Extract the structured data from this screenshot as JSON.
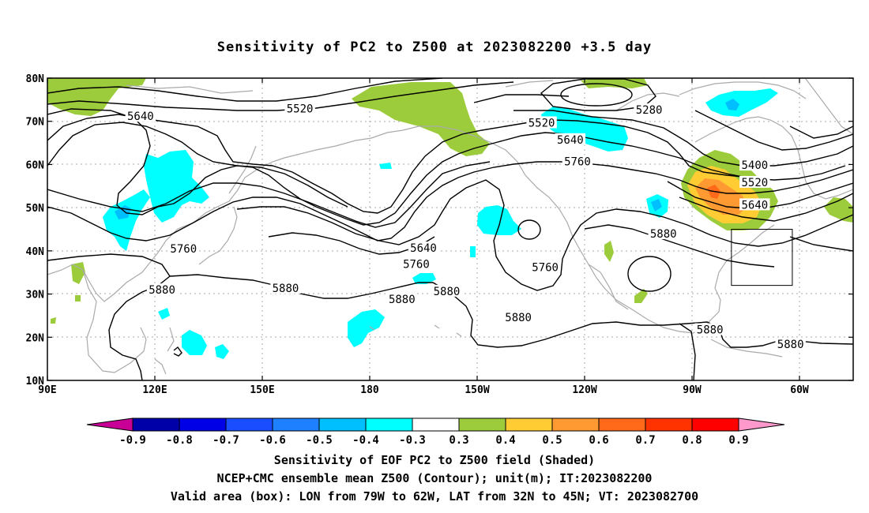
{
  "title": "Sensitivity of PC2 to Z500 at 2023082200 +3.5 day",
  "captions": [
    "Sensitivity of EOF PC2 to Z500 field (Shaded)",
    "NCEP+CMC ensemble mean Z500 (Contour); unit(m); IT:2023082200",
    "Valid area (box): LON from 79W to 62W, LAT from 32N to 45N; VT: 2023082700"
  ],
  "axes": {
    "lon_ticks": [
      {
        "lon": 90,
        "label": "90E"
      },
      {
        "lon": 120,
        "label": "120E"
      },
      {
        "lon": 150,
        "label": "150E"
      },
      {
        "lon": 180,
        "label": "180"
      },
      {
        "lon": 210,
        "label": "150W"
      },
      {
        "lon": 240,
        "label": "120W"
      },
      {
        "lon": 270,
        "label": "90W"
      },
      {
        "lon": 300,
        "label": "60W"
      }
    ],
    "lat_ticks": [
      {
        "lat": 10,
        "label": "10N"
      },
      {
        "lat": 20,
        "label": "20N"
      },
      {
        "lat": 30,
        "label": "30N"
      },
      {
        "lat": 40,
        "label": "40N"
      },
      {
        "lat": 50,
        "label": "50N"
      },
      {
        "lat": 60,
        "label": "60N"
      },
      {
        "lat": 70,
        "label": "70N"
      },
      {
        "lat": 80,
        "label": "80N"
      }
    ],
    "lon_range": [
      90,
      315
    ],
    "lat_range": [
      10,
      80
    ],
    "grid": "dotted"
  },
  "valid_box": {
    "lon_w": 281,
    "lon_e": 298,
    "lat_s": 32,
    "lat_n": 45
  },
  "colorbar": {
    "labels": [
      "-0.9",
      "-0.8",
      "-0.7",
      "-0.6",
      "-0.5",
      "-0.4",
      "-0.3",
      "0.3",
      "0.4",
      "0.5",
      "0.6",
      "0.7",
      "0.8",
      "0.9"
    ],
    "colors": [
      "#0000a8",
      "#0000e6",
      "#1a4dff",
      "#1e7fff",
      "#00bfff",
      "#00ffff",
      "#ffffff",
      "#9ccc3c",
      "#ffcc33",
      "#ff9a33",
      "#ff6a1a",
      "#ff3300",
      "#ff0000"
    ],
    "left_triangle_color": "#c80096",
    "right_triangle_color": "#ff99cc"
  },
  "contour_labels": [
    {
      "text": "5520",
      "lon": 160.5,
      "lat": 72.8
    },
    {
      "text": "5640",
      "lon": 116.0,
      "lat": 71.0
    },
    {
      "text": "5280",
      "lon": 258.0,
      "lat": 72.5
    },
    {
      "text": "5520",
      "lon": 228.0,
      "lat": 69.5
    },
    {
      "text": "5640",
      "lon": 236.0,
      "lat": 65.6
    },
    {
      "text": "5760",
      "lon": 238.0,
      "lat": 60.5
    },
    {
      "text": "5400",
      "lon": 287.5,
      "lat": 59.7
    },
    {
      "text": "5520",
      "lon": 287.5,
      "lat": 55.7
    },
    {
      "text": "5640",
      "lon": 287.5,
      "lat": 50.5
    },
    {
      "text": "5760",
      "lon": 128.0,
      "lat": 40.3
    },
    {
      "text": "5640",
      "lon": 195.0,
      "lat": 40.5
    },
    {
      "text": "5760",
      "lon": 193.0,
      "lat": 36.8
    },
    {
      "text": "5760",
      "lon": 229.0,
      "lat": 36.0
    },
    {
      "text": "5880",
      "lon": 262.0,
      "lat": 43.8
    },
    {
      "text": "5880",
      "lon": 122.0,
      "lat": 30.8
    },
    {
      "text": "5880",
      "lon": 156.5,
      "lat": 31.2
    },
    {
      "text": "5880",
      "lon": 189.0,
      "lat": 28.6
    },
    {
      "text": "5880",
      "lon": 201.5,
      "lat": 30.5
    },
    {
      "text": "5880",
      "lon": 221.5,
      "lat": 24.4
    },
    {
      "text": "5880",
      "lon": 275.0,
      "lat": 21.6
    },
    {
      "text": "5880",
      "lon": 297.5,
      "lat": 18.2
    }
  ]
}
